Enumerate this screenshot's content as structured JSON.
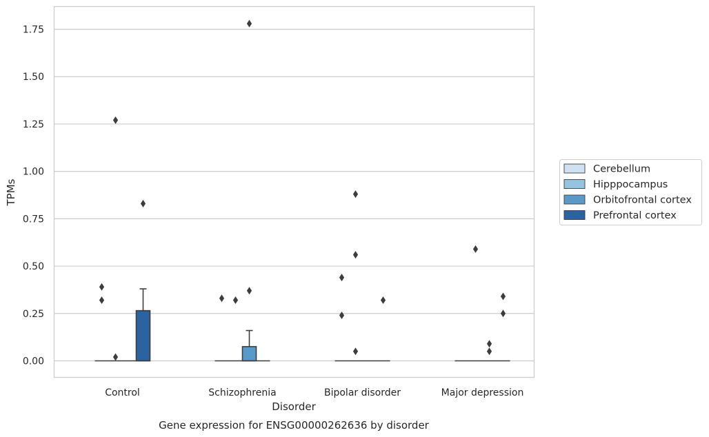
{
  "chart_data": {
    "type": "box",
    "caption": "Gene expression for ENSG00000262636 by disorder",
    "xlabel": "Disorder",
    "ylabel": "TPMs",
    "ylim": [
      -0.09,
      1.87
    ],
    "yticks": [
      0.0,
      0.25,
      0.5,
      0.75,
      1.0,
      1.25,
      1.5,
      1.75
    ],
    "ytick_labels": [
      "0.00",
      "0.25",
      "0.50",
      "0.75",
      "1.00",
      "1.25",
      "1.50",
      "1.75"
    ],
    "categories": [
      "Control",
      "Schizophrenia",
      "Bipolar disorder",
      "Major depression"
    ],
    "grid": true,
    "legend_position": "outside-right",
    "series": [
      {
        "name": "Cerebellum",
        "color": "#d0e1f2",
        "boxes": [
          {
            "q1": 0,
            "median": 0,
            "q3": 0,
            "whisker_low": 0,
            "whisker_high": 0,
            "outliers": [
              0.39,
              0.32
            ]
          },
          {
            "q1": 0,
            "median": 0,
            "q3": 0,
            "whisker_low": 0,
            "whisker_high": 0,
            "outliers": [
              0.33
            ]
          },
          {
            "q1": 0,
            "median": 0,
            "q3": 0,
            "whisker_low": 0,
            "whisker_high": 0,
            "outliers": [
              0.44,
              0.24
            ]
          },
          {
            "q1": 0,
            "median": 0,
            "q3": 0,
            "whisker_low": 0,
            "whisker_high": 0,
            "outliers": []
          }
        ]
      },
      {
        "name": "Hipppocampus",
        "color": "#94c4df",
        "boxes": [
          {
            "q1": 0,
            "median": 0,
            "q3": 0,
            "whisker_low": 0,
            "whisker_high": 0,
            "outliers": [
              1.27,
              0.02
            ]
          },
          {
            "q1": 0,
            "median": 0,
            "q3": 0,
            "whisker_low": 0,
            "whisker_high": 0,
            "outliers": [
              0.32
            ]
          },
          {
            "q1": 0,
            "median": 0,
            "q3": 0,
            "whisker_low": 0,
            "whisker_high": 0,
            "outliers": [
              0.88,
              0.56,
              0.05
            ]
          },
          {
            "q1": 0,
            "median": 0,
            "q3": 0,
            "whisker_low": 0,
            "whisker_high": 0,
            "outliers": [
              0.59
            ]
          }
        ]
      },
      {
        "name": "Orbitofrontal cortex",
        "color": "#5a9ac8",
        "boxes": [
          {
            "q1": 0,
            "median": 0,
            "q3": 0,
            "whisker_low": 0,
            "whisker_high": 0,
            "outliers": []
          },
          {
            "q1": 0,
            "median": 0,
            "q3": 0.075,
            "whisker_low": 0,
            "whisker_high": 0.16,
            "outliers": [
              1.78,
              0.37
            ]
          },
          {
            "q1": 0,
            "median": 0,
            "q3": 0,
            "whisker_low": 0,
            "whisker_high": 0,
            "outliers": []
          },
          {
            "q1": 0,
            "median": 0,
            "q3": 0,
            "whisker_low": 0,
            "whisker_high": 0,
            "outliers": [
              0.09,
              0.05
            ]
          }
        ]
      },
      {
        "name": "Prefrontal cortex",
        "color": "#2b62a0",
        "boxes": [
          {
            "q1": 0,
            "median": 0,
            "q3": 0.265,
            "whisker_low": 0,
            "whisker_high": 0.38,
            "outliers": [
              0.83
            ]
          },
          {
            "q1": 0,
            "median": 0,
            "q3": 0,
            "whisker_low": 0,
            "whisker_high": 0,
            "outliers": []
          },
          {
            "q1": 0,
            "median": 0,
            "q3": 0,
            "whisker_low": 0,
            "whisker_high": 0,
            "outliers": [
              0.32
            ]
          },
          {
            "q1": 0,
            "median": 0,
            "q3": 0,
            "whisker_low": 0,
            "whisker_high": 0,
            "outliers": [
              0.34,
              0.25
            ]
          }
        ]
      }
    ],
    "colors": {
      "grid": "#cccccc",
      "frame": "#cccccc",
      "stroke": "#3d3d3d",
      "outlier": "#3d3d3d"
    }
  }
}
